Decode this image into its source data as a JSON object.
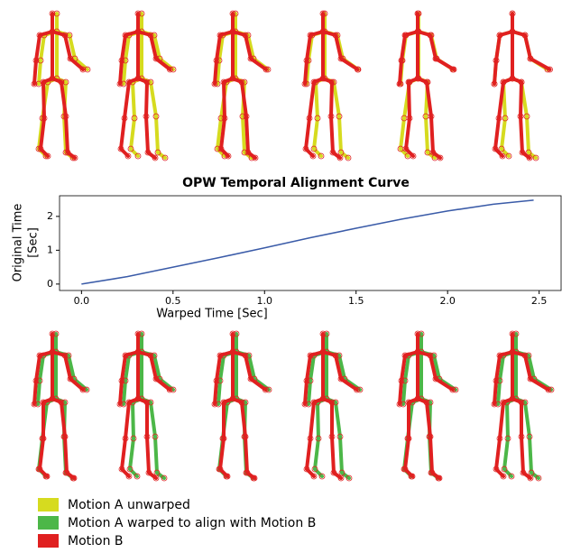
{
  "chart_data": {
    "type": "line",
    "title": "OPW Temporal Alignment Curve",
    "xlabel": "Warped Time [Sec]",
    "ylabel": [
      "Original Time",
      "[Sec]"
    ],
    "x": [
      0,
      0.25,
      0.5,
      0.75,
      1.0,
      1.25,
      1.5,
      1.75,
      2.0,
      2.25,
      2.47
    ],
    "series": [
      {
        "color": "#3a5ba8",
        "values": [
          0,
          0.22,
          0.5,
          0.78,
          1.07,
          1.37,
          1.65,
          1.92,
          2.16,
          2.36,
          2.48
        ]
      }
    ],
    "xlim": [
      -0.12,
      2.62
    ],
    "ylim": [
      -0.19,
      2.61
    ],
    "xticks": [
      {
        "value": 0,
        "label": "0.0"
      },
      0.5,
      {
        "value": 1,
        "label": "1.0"
      },
      1.5,
      {
        "value": 2,
        "label": "2.0"
      },
      2.5
    ],
    "yticks": [
      0,
      1,
      2
    ]
  },
  "legend": [
    {
      "name": "Motion A unwarped",
      "color": "#d6db1f"
    },
    {
      "name": "Motion A warped to align with Motion B",
      "color": "#4cb748"
    },
    {
      "name": "Motion B",
      "color": "#e02020"
    }
  ]
}
